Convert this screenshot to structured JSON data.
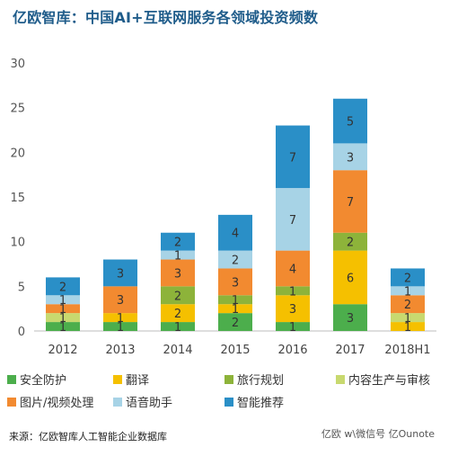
{
  "chart_data": {
    "type": "bar",
    "stacked": true,
    "title": "亿欧智库：中国AI+互联网服务各领域投资频数",
    "categories": [
      "2012",
      "2013",
      "2014",
      "2015",
      "2016",
      "2017",
      "2018H1"
    ],
    "ylim": [
      0,
      30
    ],
    "yticks": [
      "0",
      "5",
      "10",
      "15",
      "20",
      "25",
      "30"
    ],
    "grid": false,
    "legend_position": "bottom",
    "series": [
      {
        "name": "安全防护",
        "color": "#4cae4c",
        "values": [
          1,
          1,
          1,
          2,
          1,
          3,
          0
        ]
      },
      {
        "name": "翻译",
        "color": "#f5c000",
        "values": [
          0,
          1,
          2,
          1,
          3,
          6,
          1
        ]
      },
      {
        "name": "旅行规划",
        "color": "#8db33a",
        "values": [
          0,
          0,
          2,
          1,
          1,
          2,
          0
        ]
      },
      {
        "name": "内容生产与审核",
        "color": "#c8d96f",
        "values": [
          1,
          0,
          0,
          0,
          0,
          0,
          1
        ]
      },
      {
        "name": "图片/视频处理",
        "color": "#f28a30",
        "values": [
          1,
          3,
          3,
          3,
          4,
          7,
          2
        ]
      },
      {
        "name": "语音助手",
        "color": "#a7d3e6",
        "values": [
          1,
          0,
          1,
          2,
          7,
          3,
          1
        ]
      },
      {
        "name": "智能推荐",
        "color": "#2a8fc7",
        "values": [
          2,
          3,
          2,
          4,
          7,
          5,
          2
        ]
      }
    ],
    "source": "来源：亿欧智库人工智能企业数据库",
    "watermark": "亿欧 w\\微信号 亿Ounote"
  }
}
